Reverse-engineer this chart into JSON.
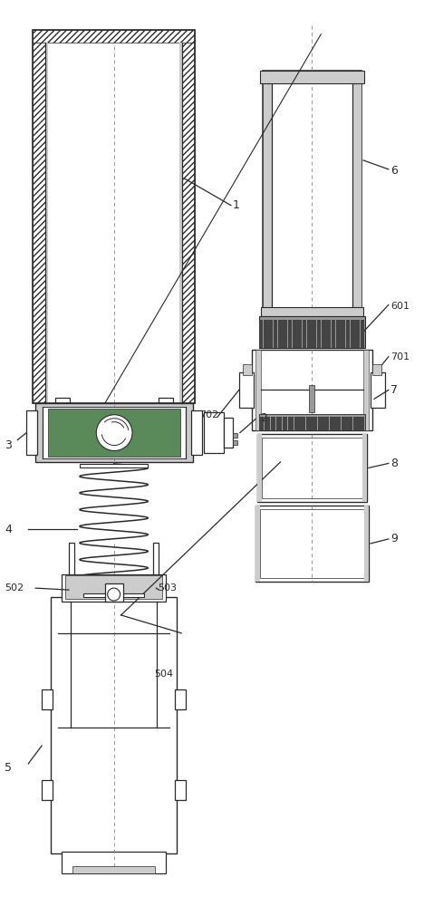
{
  "bg_color": "#ffffff",
  "lc": "#2a2a2a",
  "gray1": "#cccccc",
  "gray2": "#999999",
  "gray3": "#666666",
  "gray4": "#444444",
  "green": "#5a8a5a",
  "label_fs": 8
}
